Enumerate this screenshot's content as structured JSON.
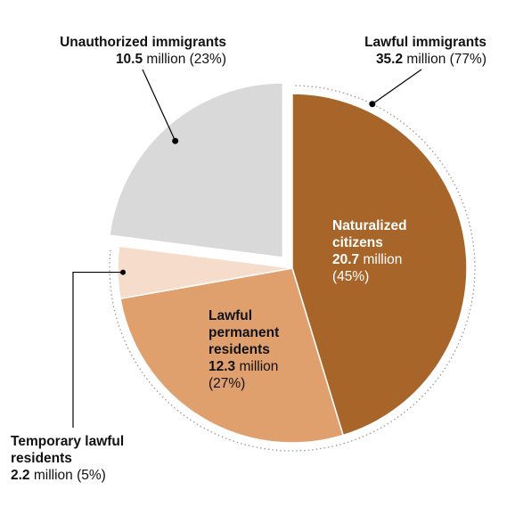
{
  "chart_data": {
    "type": "pie",
    "total_label": "",
    "slices": [
      {
        "name": "Naturalized citizens",
        "value": 20.7,
        "unit": "million",
        "pct": "(45%)",
        "color": "#a8652a",
        "group": "Lawful immigrants"
      },
      {
        "name": "Lawful permanent residents",
        "value": 12.3,
        "unit": "million",
        "pct": "(27%)",
        "color": "#e0a06e",
        "group": "Lawful immigrants"
      },
      {
        "name": "Temporary lawful residents",
        "value": 2.2,
        "unit": "million",
        "pct": "(5%)",
        "color": "#f6dccb",
        "group": "Lawful immigrants"
      },
      {
        "name": "Unauthorized immigrants",
        "value": 10.5,
        "unit": "million",
        "pct": "(23%)",
        "color": "#d9d9d9",
        "group": null
      }
    ],
    "groups": [
      {
        "name": "Lawful immigrants",
        "value": 35.2,
        "unit": "million",
        "pct": "(77%)"
      },
      {
        "name": "Unauthorized immigrants",
        "value": 10.5,
        "unit": "million",
        "pct": "(23%)"
      }
    ]
  },
  "labels": {
    "unauth_title": "Unauthorized immigrants",
    "unauth_value": "10.5",
    "unauth_rest": " million (23%)",
    "lawful_title": "Lawful immigrants",
    "lawful_value": "35.2",
    "lawful_rest": " million (77%)",
    "nat_line1": "Naturalized",
    "nat_line2": "citizens",
    "nat_value": "20.7",
    "nat_unit": " million",
    "nat_pct": "(45%)",
    "lpr_line1": "Lawful",
    "lpr_line2": "permanent",
    "lpr_line3": "residents",
    "lpr_value": "12.3",
    "lpr_unit": " million",
    "lpr_pct": "(27%)",
    "temp_line1": "Temporary lawful",
    "temp_line2": "residents",
    "temp_value": "2.2",
    "temp_rest": " million (5%)"
  }
}
